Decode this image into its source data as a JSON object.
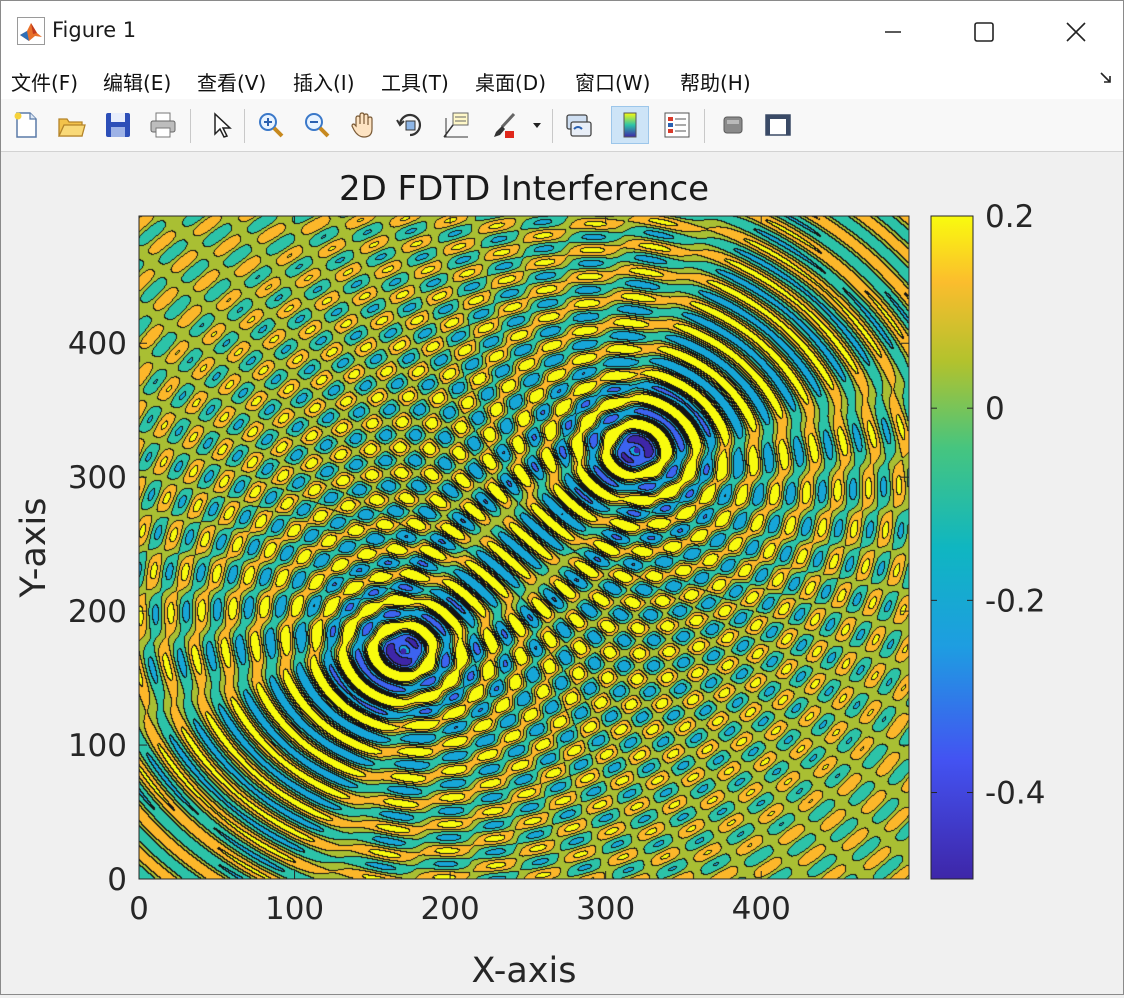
{
  "window": {
    "title": "Figure 1",
    "icons": [
      "matlab-logo-icon",
      "minimize-icon",
      "maximize-icon",
      "close-icon"
    ]
  },
  "menu": {
    "items": [
      "文件(F)",
      "编辑(E)",
      "查看(V)",
      "插入(I)",
      "工具(T)",
      "桌面(D)",
      "窗口(W)",
      "帮助(H)"
    ]
  },
  "toolbar": {
    "buttons": [
      "new-figure-icon",
      "open-file-icon",
      "save-icon",
      "print-icon",
      "select-pointer-icon",
      "zoom-in-icon",
      "zoom-out-icon",
      "pan-hand-icon",
      "rotate-3d-icon",
      "data-cursor-icon",
      "brush-icon",
      "brush-dropdown-icon",
      "link-plot-icon",
      "colorbar-icon",
      "legend-icon",
      "hide-plot-tools-icon",
      "show-plot-tools-icon"
    ],
    "active": "colorbar-icon"
  },
  "chart_data": {
    "type": "heatmap",
    "subtype": "filled contour",
    "title": "2D FDTD Interference",
    "xlabel": "X-axis",
    "ylabel": "Y-axis",
    "xlim": [
      0,
      495
    ],
    "ylim": [
      0,
      495
    ],
    "xticks": [
      0,
      100,
      200,
      300,
      400
    ],
    "yticks": [
      0,
      100,
      200,
      300,
      400
    ],
    "xtick_labels": [
      "0",
      "100",
      "200",
      "300",
      "400"
    ],
    "ytick_labels": [
      "0",
      "100",
      "200",
      "300",
      "400"
    ],
    "colorbar": {
      "ticks": [
        0.2,
        0,
        -0.2,
        -0.4
      ],
      "tick_labels": [
        "0.2",
        "0",
        "-0.2",
        "-0.4"
      ],
      "range": [
        -0.49,
        0.2
      ],
      "colormap": "parula",
      "placement": "right"
    },
    "sources": [
      {
        "x": 170,
        "y": 170,
        "center_value": -0.49
      },
      {
        "x": 320,
        "y": 320,
        "center_value": -0.49
      }
    ],
    "grid": false,
    "legend": "none",
    "colors": {
      "level_high": "#f9fb0e",
      "level_orange": "#fcb72a",
      "level_zero": "#a9bf33",
      "level_teal": "#2cc3a8",
      "level_cyan": "#16a6d8",
      "level_blue": "#3c63f0",
      "level_low": "#3e26a8"
    }
  }
}
